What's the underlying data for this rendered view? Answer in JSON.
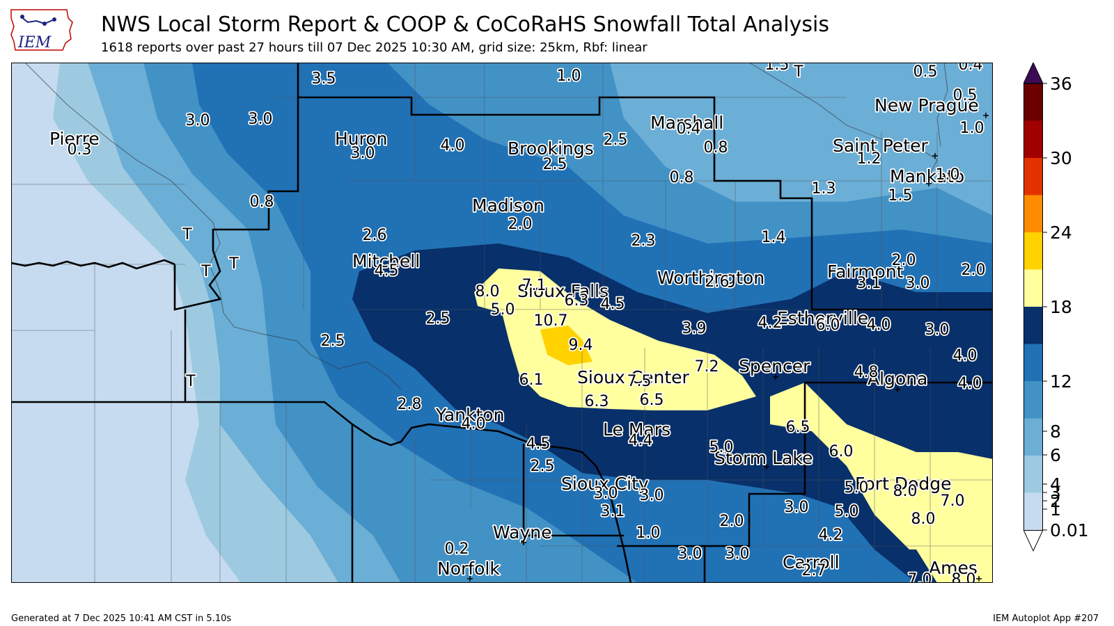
{
  "header": {
    "logo_text": "IEM",
    "title": "NWS Local Storm Report & COOP & CoCoRaHS Snowfall Total Analysis",
    "subtitle": "1618 reports over past 27 hours till 07 Dec 2025 10:30 AM, grid size: 25km, Rbf: linear"
  },
  "footer": {
    "generated": "Generated at 7 Dec 2025 10:41 AM CST in 5.10s",
    "app": "IEM Autoplot App #207"
  },
  "colorbar": {
    "ticks": [
      "0.01",
      "1",
      "2",
      "3",
      "4",
      "6",
      "8",
      "12",
      "18",
      "24",
      "30",
      "36"
    ],
    "colors": [
      "#c6dbef",
      "#9ecae1",
      "#6baed6",
      "#4292c6",
      "#2171b5",
      "#08306b",
      "#ffff9e",
      "#ffd200",
      "#ff8c00",
      "#e23200",
      "#a00000",
      "#6b0000"
    ],
    "top_arrow_color": "#3d0a55"
  },
  "cities": [
    "Pierre",
    "Huron",
    "Brookings",
    "Marshall",
    "Saint Peter",
    "New Prague",
    "Mankato",
    "Madison",
    "Mitchell",
    "Sioux Falls",
    "Worthington",
    "Fairmont",
    "Estherville",
    "Spencer",
    "Sioux Center",
    "Algona",
    "Yankton",
    "Le Mars",
    "Storm Lake",
    "Sioux City",
    "Fort Dodge",
    "Wayne",
    "Norfolk",
    "Carroll",
    "Ames"
  ],
  "reports": [
    "3.5",
    "1.0",
    "1.5",
    "T",
    "0.5",
    "0.4",
    "0.5",
    "1.0",
    "3.0",
    "3.0",
    "0.3",
    "3.0",
    "4.0",
    "2.5",
    "0.4",
    "0.8",
    "1.2",
    "2.5",
    "1.0",
    "1.5",
    "0.8",
    "0.8",
    "1.3",
    "T",
    "2.6",
    "2.0",
    "2.3",
    "1.4",
    "T",
    "T",
    "4.5",
    "8.0",
    "7.1",
    "6.3",
    "4.5",
    "2.6",
    "2.0",
    "3.1",
    "3.0",
    "2.0",
    "5.0",
    "10.7",
    "2.5",
    "2.5",
    "9.4",
    "3.9",
    "4.2",
    "6.0",
    "4.0",
    "3.0",
    "4.0",
    "7.2",
    "4.8",
    "4.0",
    "T",
    "6.1",
    "7.5",
    "6.5",
    "6.3",
    "2.8",
    "4.0",
    "4.5",
    "4.4",
    "5.0",
    "6.5",
    "6.0",
    "2.5",
    "5.0",
    "8.0",
    "7.0",
    "3.0",
    "3.0",
    "3.1",
    "3.0",
    "5.0",
    "8.0",
    "1.0",
    "2.0",
    "4.2",
    "0.2",
    "3.0",
    "3.0",
    "2.7",
    "7.0",
    "8.0"
  ]
}
